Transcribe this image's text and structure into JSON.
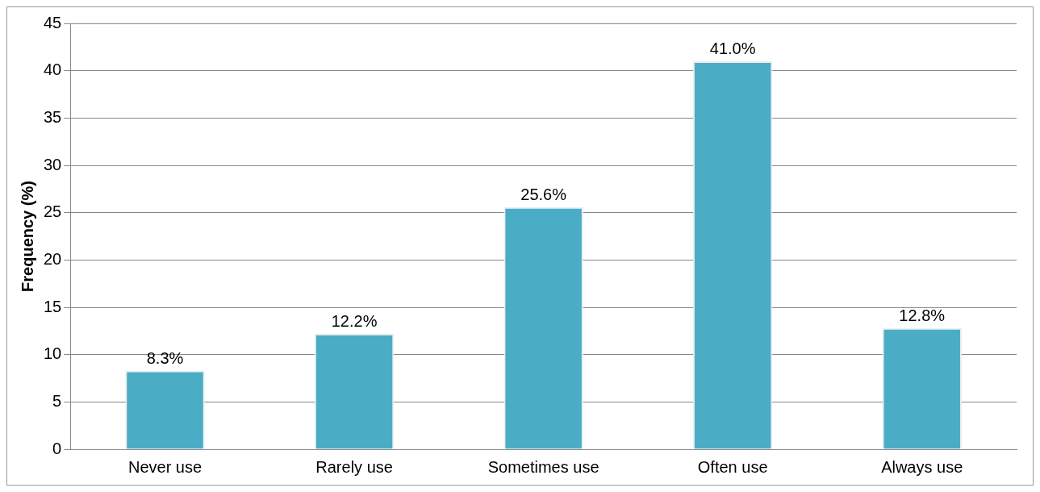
{
  "chart_data": {
    "type": "bar",
    "ylabel": "Frequency (%)",
    "categories": [
      "Never use",
      "Rarely use",
      "Sometimes use",
      "Often use",
      "Always use"
    ],
    "values": [
      8.3,
      12.2,
      25.6,
      41.0,
      12.8
    ],
    "value_labels": [
      "8.3%",
      "12.2%",
      "25.6%",
      "41.0%",
      "12.8%"
    ],
    "color": "#4bacc6",
    "ylim": [
      0,
      45
    ],
    "yticks": [
      0,
      5,
      10,
      15,
      20,
      25,
      30,
      35,
      40,
      45
    ],
    "grid": "y",
    "legend": false
  }
}
